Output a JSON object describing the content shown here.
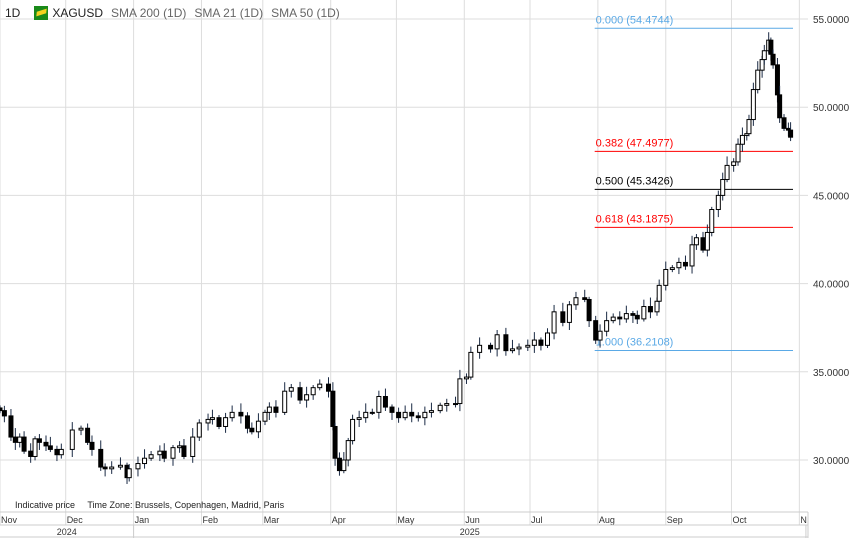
{
  "header": {
    "timeframe": "1D",
    "symbol": "XAGUSD",
    "indicators": [
      "SMA 200 (1D)",
      "SMA 21 (1D)",
      "SMA 50 (1D)"
    ]
  },
  "footer": {
    "indicative": "Indicative price",
    "timezone": "Time Zone: Brussels, Copenhagen, Madrid, Paris"
  },
  "colors": {
    "up": "#ffffff",
    "down": "#000000",
    "fib_blue": "#5aa9e6",
    "fib_red": "#ff0000",
    "fib_black": "#000000",
    "grid": "#dddddd"
  },
  "chart_data": {
    "type": "candlestick",
    "title": "XAGUSD",
    "xlabel": "",
    "ylabel": "",
    "ylim": [
      27.7,
      55.3
    ],
    "x_unit": "days since 2024-11-01",
    "y_ticks": [
      "30.0000",
      "35.0000",
      "40.0000",
      "45.0000",
      "50.0000",
      "55.0000"
    ],
    "y_tick_values": [
      30,
      35,
      40,
      45,
      50,
      55
    ],
    "month_labels": [
      {
        "label": "Nov",
        "day": 0
      },
      {
        "label": "Dec",
        "day": 30
      },
      {
        "label": "Jan",
        "day": 61
      },
      {
        "label": "Feb",
        "day": 92
      },
      {
        "label": "Mar",
        "day": 120
      },
      {
        "label": "Apr",
        "day": 151
      },
      {
        "label": "May",
        "day": 181
      },
      {
        "label": "Jun",
        "day": 212
      },
      {
        "label": "Jul",
        "day": 242
      },
      {
        "label": "Aug",
        "day": 273
      },
      {
        "label": "Sep",
        "day": 304
      },
      {
        "label": "Oct",
        "day": 334
      },
      {
        "label": "N",
        "day": 365
      }
    ],
    "year_labels": [
      {
        "label": "2024",
        "from": 0,
        "to": 61
      },
      {
        "label": "2025",
        "from": 61,
        "to": 368
      }
    ],
    "fibonacci": [
      {
        "label": "0.000 (54.4744)",
        "value": 54.4744,
        "color": "blue"
      },
      {
        "label": "0.382 (47.4977)",
        "value": 47.4977,
        "color": "red"
      },
      {
        "label": "0.500 (45.3426)",
        "value": 45.3426,
        "color": "black"
      },
      {
        "label": "0.618 (43.1875)",
        "value": 43.1875,
        "color": "red"
      },
      {
        "label": "1.000 (36.2108)",
        "value": 36.2108,
        "color": "blue"
      }
    ],
    "fib_range_days": [
      272,
      362
    ],
    "closes": [
      [
        0,
        32.8
      ],
      [
        2,
        32.5
      ],
      [
        5,
        31.3
      ],
      [
        7,
        31.0
      ],
      [
        9,
        31.3
      ],
      [
        11,
        30.5
      ],
      [
        14,
        30.2
      ],
      [
        16,
        31.2
      ],
      [
        18,
        31.0
      ],
      [
        21,
        30.8
      ],
      [
        23,
        30.6
      ],
      [
        26,
        30.3
      ],
      [
        28,
        30.6
      ],
      [
        33,
        31.7
      ],
      [
        37,
        31.8
      ],
      [
        40,
        31.0
      ],
      [
        42,
        30.6
      ],
      [
        46,
        29.6
      ],
      [
        48,
        29.5
      ],
      [
        51,
        29.6
      ],
      [
        55,
        29.7
      ],
      [
        58,
        29.0
      ],
      [
        59,
        29.5
      ],
      [
        63,
        29.8
      ],
      [
        66,
        30.1
      ],
      [
        69,
        30.3
      ],
      [
        73,
        30.5
      ],
      [
        75,
        30.1
      ],
      [
        79,
        30.7
      ],
      [
        82,
        30.8
      ],
      [
        84,
        30.2
      ],
      [
        88,
        31.3
      ],
      [
        91,
        32.1
      ],
      [
        95,
        32.3
      ],
      [
        97,
        32.4
      ],
      [
        100,
        31.9
      ],
      [
        103,
        32.4
      ],
      [
        106,
        32.7
      ],
      [
        110,
        32.5
      ],
      [
        113,
        31.8
      ],
      [
        115,
        31.6
      ],
      [
        118,
        32.2
      ],
      [
        121,
        32.7
      ],
      [
        123,
        33.0
      ],
      [
        126,
        32.7
      ],
      [
        130,
        33.9
      ],
      [
        133,
        34.1
      ],
      [
        137,
        33.4
      ],
      [
        140,
        33.7
      ],
      [
        143,
        34.1
      ],
      [
        146,
        34.3
      ],
      [
        150,
        33.9
      ],
      [
        152,
        31.9
      ],
      [
        153,
        30.1
      ],
      [
        155,
        29.4
      ],
      [
        157,
        30.0
      ],
      [
        159,
        31.1
      ],
      [
        161,
        32.3
      ],
      [
        164,
        32.4
      ],
      [
        167,
        32.7
      ],
      [
        170,
        32.7
      ],
      [
        173,
        33.6
      ],
      [
        176,
        33.0
      ],
      [
        179,
        32.7
      ],
      [
        182,
        32.4
      ],
      [
        185,
        32.7
      ],
      [
        188,
        32.5
      ],
      [
        191,
        32.4
      ],
      [
        194,
        32.7
      ],
      [
        197,
        32.8
      ],
      [
        201,
        33.1
      ],
      [
        204,
        33.2
      ],
      [
        208,
        33.2
      ],
      [
        210,
        34.6
      ],
      [
        213,
        34.7
      ],
      [
        215,
        36.1
      ],
      [
        219,
        36.5
      ],
      [
        224,
        36.3
      ],
      [
        227,
        37.1
      ],
      [
        231,
        36.2
      ],
      [
        234,
        36.3
      ],
      [
        237,
        36.4
      ],
      [
        241,
        36.5
      ],
      [
        244,
        36.8
      ],
      [
        247,
        36.5
      ],
      [
        250,
        37.2
      ],
      [
        253,
        38.4
      ],
      [
        257,
        37.8
      ],
      [
        260,
        38.8
      ],
      [
        263,
        39.2
      ],
      [
        267,
        39.1
      ],
      [
        269,
        37.9
      ],
      [
        272,
        36.8
      ],
      [
        274,
        37.3
      ],
      [
        277,
        37.9
      ],
      [
        280,
        38.1
      ],
      [
        283,
        38.0
      ],
      [
        286,
        38.3
      ],
      [
        289,
        38.2
      ],
      [
        291,
        38.0
      ],
      [
        294,
        38.7
      ],
      [
        297,
        38.4
      ],
      [
        300,
        39.0
      ],
      [
        301,
        39.9
      ],
      [
        304,
        40.8
      ],
      [
        307,
        40.9
      ],
      [
        310,
        41.2
      ],
      [
        313,
        41.0
      ],
      [
        316,
        42.2
      ],
      [
        318,
        42.6
      ],
      [
        321,
        41.9
      ],
      [
        323,
        42.9
      ],
      [
        325,
        44.2
      ],
      [
        328,
        45.0
      ],
      [
        330,
        45.9
      ],
      [
        332,
        46.7
      ],
      [
        335,
        46.9
      ],
      [
        337,
        47.9
      ],
      [
        339,
        48.4
      ],
      [
        341,
        48.5
      ],
      [
        342,
        49.3
      ],
      [
        344,
        51.0
      ],
      [
        346,
        52.1
      ],
      [
        348,
        52.7
      ],
      [
        349,
        53.2
      ],
      [
        351,
        53.8
      ],
      [
        352,
        53.0
      ],
      [
        353,
        52.4
      ],
      [
        355,
        50.7
      ],
      [
        356,
        49.4
      ],
      [
        358,
        48.8
      ],
      [
        360,
        48.7
      ],
      [
        361,
        48.3
      ]
    ]
  }
}
